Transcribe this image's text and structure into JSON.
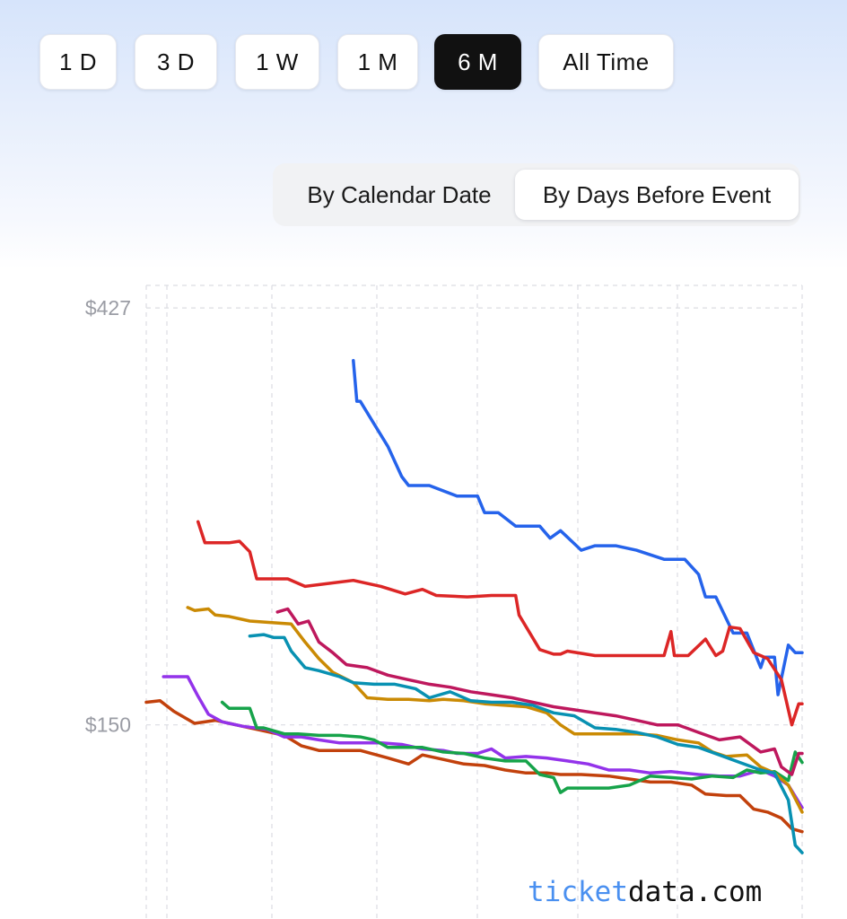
{
  "range_buttons": [
    {
      "label": "1 D",
      "active": false
    },
    {
      "label": "3 D",
      "active": false
    },
    {
      "label": "1 W",
      "active": false
    },
    {
      "label": "1 M",
      "active": false
    },
    {
      "label": "6 M",
      "active": true
    },
    {
      "label": "All Time",
      "active": false
    }
  ],
  "view_toggle": {
    "calendar_label": "By Calendar Date",
    "days_label": "By Days Before Event",
    "selected": "days"
  },
  "watermark": {
    "part1": "ticket",
    "part2": "data.com"
  },
  "chart_data": {
    "type": "line",
    "title": "",
    "xlabel": "",
    "ylabel": "",
    "y_ticks": [
      "$427",
      "$150"
    ],
    "y_tick_values": [
      427,
      150
    ],
    "ylim": [
      21,
      442
    ],
    "xlim": [
      -190,
      0
    ],
    "x_unit": "days before event",
    "grid": true,
    "legend": "none",
    "series": [
      {
        "color": "#2563eb",
        "x": [
          -130,
          -129,
          -128,
          -124,
          -120,
          -116,
          -114,
          -108,
          -100,
          -94,
          -92,
          -88,
          -83,
          -76,
          -73,
          -70,
          -64,
          -60,
          -54,
          -48,
          -40,
          -34,
          -30,
          -28,
          -25,
          -20,
          -16,
          -12,
          -11,
          -8,
          -7,
          -4,
          -2,
          0
        ],
        "y": [
          392,
          365,
          365,
          350,
          335,
          315,
          309,
          309,
          302,
          302,
          291,
          291,
          282,
          282,
          274,
          279,
          266,
          269,
          269,
          266,
          260,
          260,
          250,
          235,
          235,
          211,
          211,
          188,
          195,
          195,
          170,
          203,
          198,
          198
        ]
      },
      {
        "color": "#dc2626",
        "x": [
          -175,
          -173,
          -166,
          -163,
          -160,
          -158,
          -156,
          -149,
          -144,
          -130,
          -122,
          -115,
          -110,
          -106,
          -97,
          -90,
          -83,
          -82,
          -76,
          -72,
          -70,
          -68,
          -60,
          -50,
          -40,
          -38,
          -37,
          -33,
          -28,
          -25,
          -23,
          -21,
          -18,
          -14,
          -10,
          -6,
          -3,
          -1,
          0
        ],
        "y": [
          285,
          271,
          271,
          272,
          265,
          247,
          247,
          247,
          242,
          246,
          242,
          237,
          240,
          236,
          235,
          236,
          236,
          223,
          200,
          197,
          197,
          199,
          196,
          196,
          196,
          212,
          196,
          196,
          207,
          196,
          199,
          215,
          214,
          198,
          194,
          180,
          150,
          164,
          164
        ]
      },
      {
        "color": "#c2410c",
        "x": [
          -190,
          -186,
          -182,
          -176,
          -170,
          -164,
          -158,
          -150,
          -145,
          -140,
          -128,
          -120,
          -114,
          -110,
          -104,
          -98,
          -92,
          -86,
          -80,
          -74,
          -70,
          -64,
          -56,
          -50,
          -44,
          -38,
          -32,
          -28,
          -22,
          -18,
          -14,
          -10,
          -6,
          -3,
          0
        ],
        "y": [
          165,
          166,
          159,
          151,
          153,
          150,
          147,
          143,
          136,
          133,
          133,
          128,
          124,
          130,
          127,
          124,
          123,
          120,
          118,
          118,
          117,
          117,
          116,
          114,
          112,
          112,
          110,
          104,
          103,
          103,
          94,
          92,
          88,
          81,
          79
        ]
      },
      {
        "color": "#9333ea",
        "x": [
          -185,
          -178,
          -175,
          -172,
          -168,
          -162,
          -155,
          -150,
          -145,
          -140,
          -134,
          -128,
          -122,
          -116,
          -110,
          -104,
          -100,
          -94,
          -90,
          -86,
          -80,
          -74,
          -68,
          -62,
          -56,
          -50,
          -44,
          -38,
          -30,
          -24,
          -18,
          -12,
          -8,
          -4,
          0
        ],
        "y": [
          182,
          182,
          169,
          157,
          152,
          149,
          147,
          142,
          142,
          140,
          138,
          138,
          138,
          137,
          134,
          133,
          131,
          131,
          134,
          128,
          129,
          128,
          126,
          124,
          120,
          120,
          118,
          119,
          117,
          116,
          116,
          120,
          116,
          110,
          95
        ]
      },
      {
        "color": "#16a34a",
        "x": [
          -168,
          -166,
          -160,
          -158,
          -156,
          -150,
          -146,
          -140,
          -134,
          -128,
          -124,
          -120,
          -116,
          -110,
          -104,
          -98,
          -92,
          -86,
          -80,
          -76,
          -72,
          -70,
          -68,
          -62,
          -56,
          -50,
          -44,
          -38,
          -32,
          -26,
          -20,
          -16,
          -12,
          -8,
          -4,
          -2,
          0
        ],
        "y": [
          165,
          161,
          161,
          148,
          148,
          144,
          144,
          143,
          143,
          142,
          140,
          135,
          135,
          135,
          132,
          131,
          128,
          126,
          126,
          117,
          115,
          105,
          108,
          108,
          108,
          110,
          116,
          115,
          114,
          116,
          115,
          120,
          118,
          119,
          113,
          132,
          125
        ]
      },
      {
        "color": "#ca8a04",
        "x": [
          -178,
          -176,
          -172,
          -170,
          -166,
          -160,
          -154,
          -148,
          -144,
          -140,
          -136,
          -130,
          -126,
          -120,
          -114,
          -108,
          -104,
          -98,
          -92,
          -86,
          -80,
          -74,
          -70,
          -66,
          -60,
          -54,
          -48,
          -42,
          -36,
          -30,
          -26,
          -22,
          -16,
          -12,
          -8,
          -4,
          0
        ],
        "y": [
          228,
          226,
          227,
          223,
          222,
          219,
          218,
          217,
          205,
          194,
          185,
          178,
          168,
          167,
          167,
          166,
          167,
          166,
          164,
          163,
          162,
          158,
          150,
          144,
          144,
          144,
          144,
          143,
          140,
          138,
          132,
          129,
          130,
          122,
          118,
          110,
          92
        ]
      },
      {
        "color": "#be185d",
        "x": [
          -152,
          -149,
          -146,
          -143,
          -140,
          -136,
          -132,
          -126,
          -120,
          -114,
          -108,
          -102,
          -96,
          -90,
          -84,
          -78,
          -72,
          -66,
          -60,
          -54,
          -48,
          -42,
          -36,
          -30,
          -24,
          -18,
          -12,
          -8,
          -6,
          -3,
          -1,
          0
        ],
        "y": [
          225,
          227,
          217,
          219,
          205,
          198,
          190,
          188,
          183,
          180,
          177,
          175,
          172,
          170,
          168,
          165,
          162,
          160,
          158,
          156,
          153,
          150,
          150,
          145,
          140,
          142,
          132,
          134,
          122,
          117,
          131,
          131
        ]
      },
      {
        "color": "#0891b2",
        "x": [
          -160,
          -156,
          -153,
          -150,
          -148,
          -144,
          -140,
          -134,
          -130,
          -124,
          -118,
          -112,
          -108,
          -102,
          -96,
          -90,
          -84,
          -78,
          -72,
          -66,
          -60,
          -54,
          -48,
          -42,
          -36,
          -30,
          -24,
          -18,
          -12,
          -8,
          -4,
          -2,
          0
        ],
        "y": [
          209,
          210,
          208,
          208,
          199,
          188,
          186,
          182,
          178,
          177,
          177,
          174,
          168,
          172,
          166,
          165,
          165,
          163,
          158,
          156,
          148,
          147,
          145,
          142,
          137,
          135,
          130,
          125,
          120,
          118,
          100,
          70,
          65
        ]
      }
    ]
  }
}
